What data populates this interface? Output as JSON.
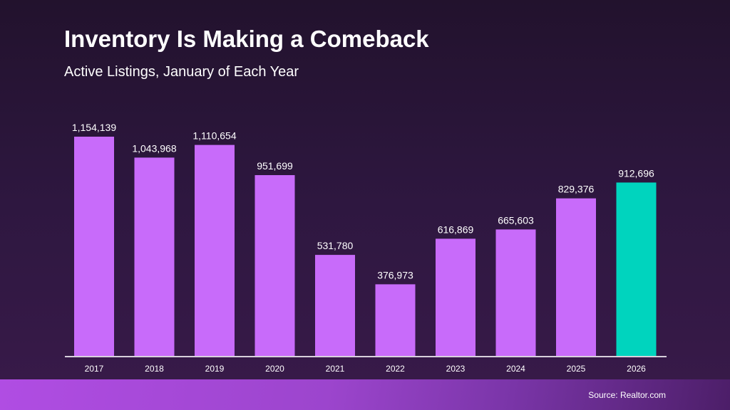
{
  "colors": {
    "bar": "#c86bfa",
    "highlight": "#00d4be",
    "text": "#ffffff",
    "axis": "#d8d0dc"
  },
  "chart_data": {
    "type": "bar",
    "title": "Inventory Is Making a Comeback",
    "subtitle": "Active Listings, January of Each Year",
    "categories": [
      "2017",
      "2018",
      "2019",
      "2020",
      "2021",
      "2022",
      "2023",
      "2024",
      "2025",
      "2026"
    ],
    "values": [
      1154139,
      1043968,
      1110654,
      951699,
      531780,
      376973,
      616869,
      665603,
      829376,
      912696
    ],
    "labels": [
      "1,154,139",
      "1,043,968",
      "1,110,654",
      "951,699",
      "531,780",
      "376,973",
      "616,869",
      "665,603",
      "829,376",
      "912,696"
    ],
    "highlight_index": 9,
    "grid": false,
    "ylim": [
      0,
      1154139
    ]
  },
  "footer": {
    "source": "Source: Realtor.com"
  }
}
